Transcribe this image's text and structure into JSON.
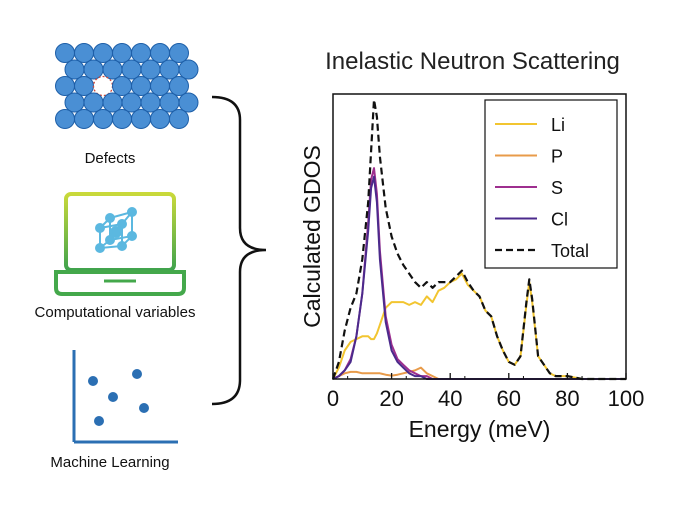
{
  "left_panel": {
    "defects_label": "Defects",
    "computational_label": "Computational variables",
    "ml_label": "Machine Learning"
  },
  "chart_data": {
    "type": "line",
    "title": "Inelastic Neutron Scattering",
    "xlabel": "Energy (meV)",
    "ylabel": "Calculated GDOS",
    "xlim": [
      0,
      100
    ],
    "ylim": [
      0,
      1.0
    ],
    "x_ticks": [
      "0",
      "20",
      "40",
      "60",
      "80",
      "100"
    ],
    "y_ticks_labeled": false,
    "legend_position": "top-right",
    "x": [
      0,
      2,
      4,
      6,
      8,
      10,
      12,
      13,
      14,
      15,
      16,
      18,
      20,
      22,
      24,
      26,
      28,
      30,
      32,
      34,
      36,
      38,
      40,
      42,
      44,
      46,
      48,
      50,
      52,
      54,
      56,
      58,
      60,
      62,
      64,
      66,
      67,
      68,
      70,
      72,
      74,
      76,
      80,
      85,
      90,
      95,
      100
    ],
    "series": [
      {
        "name": "Li",
        "color": "#f2c530",
        "style": "solid",
        "values": [
          0.0,
          0.04,
          0.1,
          0.13,
          0.14,
          0.15,
          0.15,
          0.14,
          0.14,
          0.16,
          0.19,
          0.25,
          0.27,
          0.27,
          0.27,
          0.26,
          0.27,
          0.26,
          0.29,
          0.27,
          0.31,
          0.32,
          0.34,
          0.35,
          0.37,
          0.33,
          0.31,
          0.29,
          0.24,
          0.22,
          0.15,
          0.1,
          0.06,
          0.05,
          0.08,
          0.26,
          0.34,
          0.27,
          0.08,
          0.05,
          0.02,
          0.01,
          0.01,
          0.0,
          0.0,
          0.0,
          0.0
        ]
      },
      {
        "name": "P",
        "color": "#e89b4a",
        "style": "solid",
        "values": [
          0.0,
          0.01,
          0.02,
          0.025,
          0.025,
          0.02,
          0.02,
          0.02,
          0.02,
          0.02,
          0.02,
          0.015,
          0.012,
          0.015,
          0.02,
          0.025,
          0.03,
          0.04,
          0.02,
          0.01,
          0.0,
          0.0,
          0.0,
          0.0,
          0.0,
          0.0,
          0.0,
          0.0,
          0.0,
          0.0,
          0.0,
          0.0,
          0.0,
          0.0,
          0.0,
          0.0,
          0.0,
          0.0,
          0.0,
          0.0,
          0.0,
          0.0,
          0.0,
          0.0,
          0.0,
          0.0,
          0.0
        ]
      },
      {
        "name": "S",
        "color": "#9e2f8f",
        "style": "solid",
        "values": [
          0.0,
          0.01,
          0.03,
          0.07,
          0.15,
          0.3,
          0.55,
          0.7,
          0.74,
          0.65,
          0.45,
          0.22,
          0.12,
          0.07,
          0.05,
          0.03,
          0.02,
          0.01,
          0.01,
          0.0,
          0.0,
          0.0,
          0.0,
          0.0,
          0.0,
          0.0,
          0.0,
          0.0,
          0.0,
          0.0,
          0.0,
          0.0,
          0.0,
          0.0,
          0.0,
          0.0,
          0.0,
          0.0,
          0.0,
          0.0,
          0.0,
          0.0,
          0.0,
          0.0,
          0.0,
          0.0,
          0.0
        ]
      },
      {
        "name": "Cl",
        "color": "#4b2a8c",
        "style": "solid",
        "values": [
          0.0,
          0.01,
          0.03,
          0.06,
          0.15,
          0.3,
          0.52,
          0.67,
          0.71,
          0.62,
          0.42,
          0.2,
          0.1,
          0.06,
          0.04,
          0.02,
          0.01,
          0.01,
          0.0,
          0.0,
          0.0,
          0.0,
          0.0,
          0.0,
          0.0,
          0.0,
          0.0,
          0.0,
          0.0,
          0.0,
          0.0,
          0.0,
          0.0,
          0.0,
          0.0,
          0.0,
          0.0,
          0.0,
          0.0,
          0.0,
          0.0,
          0.0,
          0.0,
          0.0,
          0.0,
          0.0,
          0.0
        ]
      },
      {
        "name": "Total",
        "color": "#111111",
        "style": "dashed",
        "values": [
          0.0,
          0.06,
          0.17,
          0.25,
          0.3,
          0.42,
          0.62,
          0.8,
          0.98,
          0.92,
          0.78,
          0.6,
          0.5,
          0.44,
          0.4,
          0.37,
          0.34,
          0.32,
          0.34,
          0.32,
          0.34,
          0.34,
          0.34,
          0.36,
          0.38,
          0.34,
          0.31,
          0.29,
          0.24,
          0.22,
          0.15,
          0.1,
          0.06,
          0.05,
          0.08,
          0.27,
          0.35,
          0.28,
          0.08,
          0.05,
          0.02,
          0.01,
          0.01,
          0.0,
          0.0,
          0.0,
          0.0
        ]
      }
    ]
  }
}
